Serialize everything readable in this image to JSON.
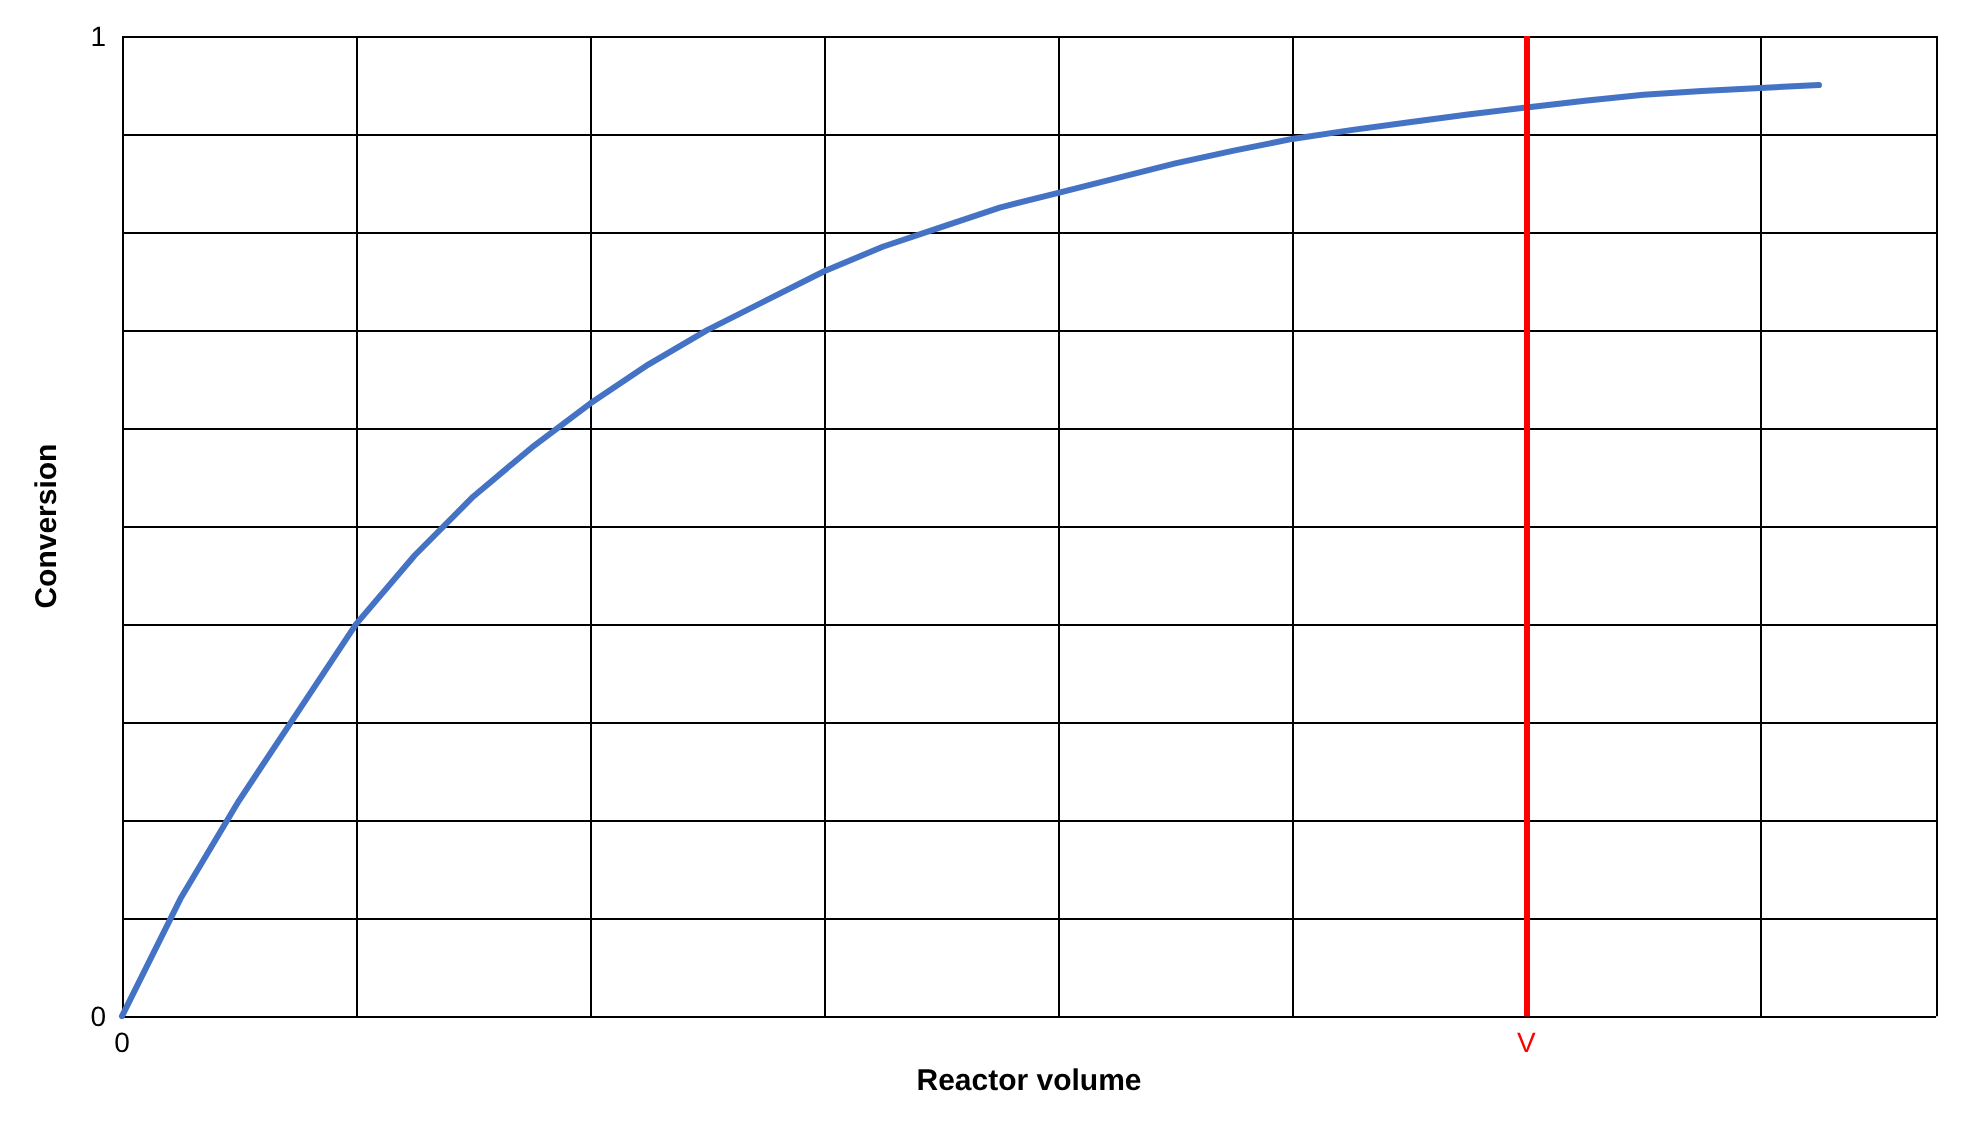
{
  "chart_data": {
    "type": "line",
    "xlabel": "Reactor volume",
    "ylabel": "Conversion",
    "categories": [
      "0",
      null,
      null,
      null,
      null,
      null,
      null,
      null,
      null,
      null,
      null,
      null,
      null,
      null,
      null,
      null,
      null,
      null,
      null,
      null,
      null,
      null,
      null,
      null,
      "V",
      null,
      null,
      null,
      null,
      null,
      null,
      null
    ],
    "series": [
      {
        "color": "#4472c4",
        "values": [
          0,
          0.12,
          0.22,
          0.31,
          0.4,
          0.47,
          0.53,
          0.58,
          0.625,
          0.665,
          0.7,
          0.73,
          0.76,
          0.785,
          0.805,
          0.825,
          0.84,
          0.855,
          0.87,
          0.883,
          0.895,
          0.904,
          0.912,
          0.92,
          0.927,
          0.934,
          0.94,
          0.944,
          0.947,
          0.95,
          null,
          null
        ]
      }
    ],
    "ylim": [
      0,
      1
    ],
    "yticks": [
      0,
      {
        "value": 0.1,
        "label": null
      },
      {
        "value": 0.2,
        "label": null
      },
      {
        "value": 0.3,
        "label": null
      },
      {
        "value": 0.4,
        "label": null
      },
      {
        "value": 0.5,
        "label": null
      },
      {
        "value": 0.6,
        "label": null
      },
      {
        "value": 0.7,
        "label": null
      },
      {
        "value": 0.8,
        "label": null
      },
      {
        "value": 0.9,
        "label": null
      },
      1
    ],
    "ref_lines": [
      {
        "axis": "x",
        "value": "V",
        "color": "#ff0000"
      }
    ],
    "grid": true,
    "marker": "none",
    "line_style": "solid"
  }
}
